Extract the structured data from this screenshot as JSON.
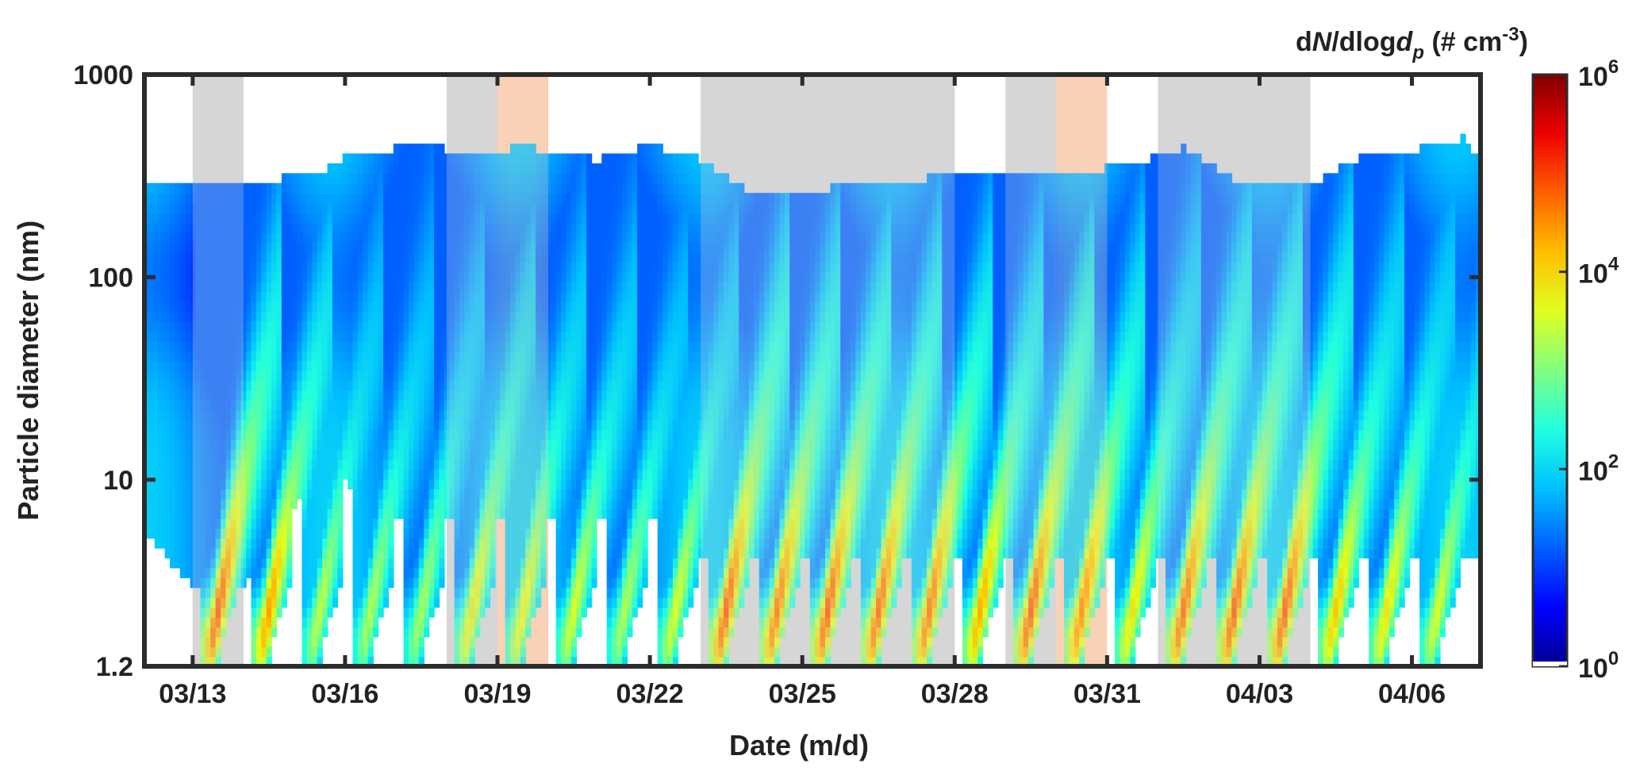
{
  "chart_data": {
    "type": "heatmap",
    "title": "",
    "xlabel": "Date (m/d)",
    "ylabel": "Particle diameter (nm)",
    "x_tick_labels": [
      "03/13",
      "03/16",
      "03/19",
      "03/22",
      "03/25",
      "03/28",
      "03/31",
      "04/03",
      "04/06"
    ],
    "y_tick_labels": [
      "1.2",
      "10",
      "100",
      "1000"
    ],
    "y_scale": "log",
    "ylim": [
      1.2,
      1000
    ],
    "xlim_days": [
      12.05,
      38.35
    ],
    "x_tick_days": [
      13,
      16,
      19,
      22,
      25,
      28,
      31,
      34,
      37
    ],
    "y_tick_values": [
      1.2,
      10,
      100,
      1000
    ],
    "colorbar": {
      "title_parts": {
        "p1": "d",
        "p2": "N",
        "p3": "/dlog",
        "p4": "d",
        "sub": "p",
        "p5": " (# cm",
        "sup": "-3",
        "p6": ")"
      },
      "scale": "log",
      "range": [
        1,
        1000000
      ],
      "tick_labels": [
        {
          "base": "10",
          "exp": "0"
        },
        {
          "base": "10",
          "exp": "2"
        },
        {
          "base": "10",
          "exp": "4"
        },
        {
          "base": "10",
          "exp": "6"
        }
      ],
      "colormap": "jet",
      "colors": [
        "#00008f",
        "#0000ff",
        "#0060ff",
        "#00c0ff",
        "#20ffdf",
        "#80ff80",
        "#dfff20",
        "#ffbf00",
        "#ff6000",
        "#ef0000",
        "#800000"
      ]
    },
    "shaded_periods": [
      {
        "start": 13.0,
        "end": 14.0,
        "color": "#d6d6d6"
      },
      {
        "start": 18.0,
        "end": 19.0,
        "color": "#d6d6d6"
      },
      {
        "start": 19.0,
        "end": 20.0,
        "color": "#f9d2b6"
      },
      {
        "start": 23.0,
        "end": 28.0,
        "color": "#d6d6d6"
      },
      {
        "start": 29.0,
        "end": 30.0,
        "color": "#d6d6d6"
      },
      {
        "start": 30.0,
        "end": 31.0,
        "color": "#f9d2b6"
      },
      {
        "start": 32.0,
        "end": 35.0,
        "color": "#d6d6d6"
      }
    ],
    "upper_size_limit_nm": [
      {
        "day": 12.05,
        "dp": 280
      },
      {
        "day": 13.0,
        "dp": 300
      },
      {
        "day": 14.5,
        "dp": 300
      },
      {
        "day": 15.5,
        "dp": 330
      },
      {
        "day": 16.0,
        "dp": 390
      },
      {
        "day": 17.5,
        "dp": 460
      },
      {
        "day": 18.5,
        "dp": 400
      },
      {
        "day": 19.5,
        "dp": 440
      },
      {
        "day": 21.0,
        "dp": 380
      },
      {
        "day": 22.0,
        "dp": 450
      },
      {
        "day": 23.0,
        "dp": 380
      },
      {
        "day": 24.0,
        "dp": 260
      },
      {
        "day": 26.0,
        "dp": 280
      },
      {
        "day": 27.5,
        "dp": 310
      },
      {
        "day": 28.5,
        "dp": 330
      },
      {
        "day": 29.5,
        "dp": 310
      },
      {
        "day": 31.5,
        "dp": 360
      },
      {
        "day": 32.5,
        "dp": 440
      },
      {
        "day": 33.5,
        "dp": 300
      },
      {
        "day": 35.0,
        "dp": 290
      },
      {
        "day": 36.0,
        "dp": 390
      },
      {
        "day": 37.0,
        "dp": 420
      },
      {
        "day": 38.0,
        "dp": 490
      },
      {
        "day": 38.35,
        "dp": 380
      }
    ],
    "lower_size_limit_nm": [
      {
        "day": 12.05,
        "dp": 5.5
      },
      {
        "day": 13.0,
        "dp": 3.0
      },
      {
        "day": 14.0,
        "dp": 3.0
      },
      {
        "day": 15.5,
        "dp": 12
      },
      {
        "day": 17.0,
        "dp": 6.5
      },
      {
        "day": 18.0,
        "dp": 6.5
      },
      {
        "day": 20.5,
        "dp": 6.5
      },
      {
        "day": 22.0,
        "dp": 6.5
      },
      {
        "day": 23.0,
        "dp": 4.0
      },
      {
        "day": 38.35,
        "dp": 4.0
      }
    ],
    "nucleation_bursts": [
      {
        "day": 13.5,
        "peak": 30000
      },
      {
        "day": 14.5,
        "peak": 10000
      },
      {
        "day": 15.5,
        "peak": 1000
      },
      {
        "day": 16.5,
        "peak": 800
      },
      {
        "day": 17.5,
        "peak": 700
      },
      {
        "day": 18.5,
        "peak": 3000
      },
      {
        "day": 19.5,
        "peak": 2000
      },
      {
        "day": 20.5,
        "peak": 1500
      },
      {
        "day": 21.5,
        "peak": 800
      },
      {
        "day": 22.5,
        "peak": 1500
      },
      {
        "day": 23.5,
        "peak": 30000
      },
      {
        "day": 24.5,
        "peak": 20000
      },
      {
        "day": 25.5,
        "peak": 30000
      },
      {
        "day": 26.5,
        "peak": 25000
      },
      {
        "day": 27.5,
        "peak": 20000
      },
      {
        "day": 28.5,
        "peak": 8000
      },
      {
        "day": 29.5,
        "peak": 30000
      },
      {
        "day": 30.5,
        "peak": 15000
      },
      {
        "day": 31.5,
        "peak": 3000
      },
      {
        "day": 32.5,
        "peak": 25000
      },
      {
        "day": 33.5,
        "peak": 30000
      },
      {
        "day": 34.5,
        "peak": 30000
      },
      {
        "day": 35.5,
        "peak": 5000
      },
      {
        "day": 36.5,
        "peak": 3000
      },
      {
        "day": 37.5,
        "peak": 1500
      }
    ],
    "grid": false,
    "legend": "colorbar-right"
  }
}
